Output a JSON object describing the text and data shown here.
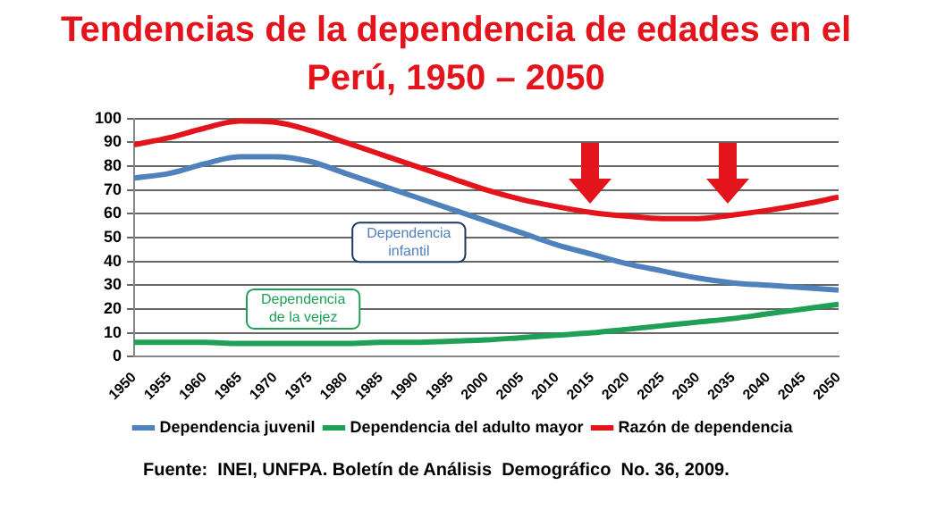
{
  "chart_data": {
    "type": "line",
    "title": "Tendencias de la dependencia de edades en el Perú, 1950 – 2050",
    "x": [
      1950,
      1955,
      1960,
      1965,
      1970,
      1975,
      1980,
      1985,
      1990,
      1995,
      2000,
      2005,
      2010,
      2015,
      2020,
      2025,
      2030,
      2035,
      2040,
      2045,
      2050
    ],
    "series": [
      {
        "name": "Dependencia juvenil",
        "color": "#4f81bd",
        "values": [
          75,
          77,
          81,
          84,
          84,
          82,
          77,
          72,
          67,
          62,
          57,
          52,
          47,
          43,
          39,
          36,
          33,
          31,
          30,
          29,
          28
        ]
      },
      {
        "name": "Dependencia del adulto mayor",
        "color": "#1fa055",
        "values": [
          6,
          6,
          6,
          5.5,
          5.5,
          5.5,
          5.5,
          6,
          6,
          6.5,
          7,
          8,
          9,
          10,
          11.5,
          13,
          14.5,
          16,
          18,
          20,
          22
        ]
      },
      {
        "name": "Razón de dependencia",
        "color": "#e3141c",
        "values": [
          89,
          92,
          96,
          99,
          98.5,
          95,
          90,
          85,
          80,
          75,
          70,
          66,
          63,
          60.5,
          59,
          58,
          58,
          59.5,
          61.5,
          64,
          67
        ]
      }
    ],
    "xlim": [
      1950,
      2050
    ],
    "xticks": [
      1950,
      1955,
      1960,
      1965,
      1970,
      1975,
      1980,
      1985,
      1990,
      1995,
      2000,
      2005,
      2010,
      2015,
      2020,
      2025,
      2030,
      2035,
      2040,
      2045,
      2050
    ],
    "ylim": [
      0,
      100
    ],
    "yticks": [
      0,
      10,
      20,
      30,
      40,
      50,
      60,
      70,
      80,
      90,
      100
    ],
    "grid": "y",
    "legend": "bottom",
    "marker": "none",
    "line_style": "solid",
    "annotations": [
      "Dependencia infantil",
      "Dependencia de la vejez",
      "Fuente:  INEI, UNFPA. Boletín de Análisis  Demográfico  No. 36, 2009."
    ]
  }
}
